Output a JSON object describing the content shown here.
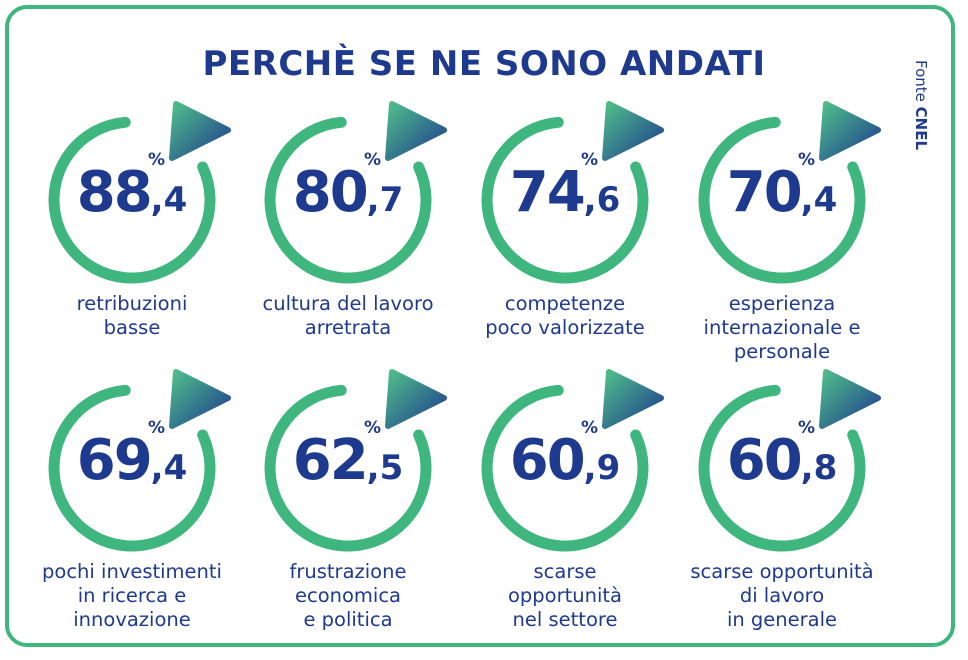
{
  "title": "PERCHÈ SE NE SONO ANDATI",
  "source": {
    "prefix": "Fonte",
    "name": "CNEL"
  },
  "colors": {
    "ring": "#3fb67e",
    "text": "#1e3a8f",
    "arrow_start": "#4fbf8a",
    "arrow_end": "#1e3a8f"
  },
  "chart_data": {
    "type": "table",
    "unit": "%",
    "title": "PERCHÈ SE NE SONO ANDATI",
    "items": [
      {
        "integer": "88",
        "decimal": ",4",
        "unit": "%",
        "value": 88.4,
        "label_lines": [
          "retribuzioni",
          "basse"
        ]
      },
      {
        "integer": "80",
        "decimal": ",7",
        "unit": "%",
        "value": 80.7,
        "label_lines": [
          "cultura del lavoro",
          "arretrata"
        ]
      },
      {
        "integer": "74",
        "decimal": ",6",
        "unit": "%",
        "value": 74.6,
        "label_lines": [
          "competenze",
          "poco valorizzate"
        ]
      },
      {
        "integer": "70",
        "decimal": ",4",
        "unit": "%",
        "value": 70.4,
        "label_lines": [
          "esperienza",
          "internazionale e",
          "personale"
        ]
      },
      {
        "integer": "69",
        "decimal": ",4",
        "unit": "%",
        "value": 69.4,
        "label_lines": [
          "pochi investimenti",
          "in ricerca e",
          "innovazione"
        ]
      },
      {
        "integer": "62",
        "decimal": ",5",
        "unit": "%",
        "value": 62.5,
        "label_lines": [
          "frustrazione",
          "economica",
          "e politica"
        ]
      },
      {
        "integer": "60",
        "decimal": ",9",
        "unit": "%",
        "value": 60.9,
        "label_lines": [
          "scarse",
          "opportunità",
          "nel settore"
        ]
      },
      {
        "integer": "60",
        "decimal": ",8",
        "unit": "%",
        "value": 60.8,
        "label_lines": [
          "scarse opportunità",
          "di lavoro",
          "in generale"
        ]
      }
    ]
  }
}
